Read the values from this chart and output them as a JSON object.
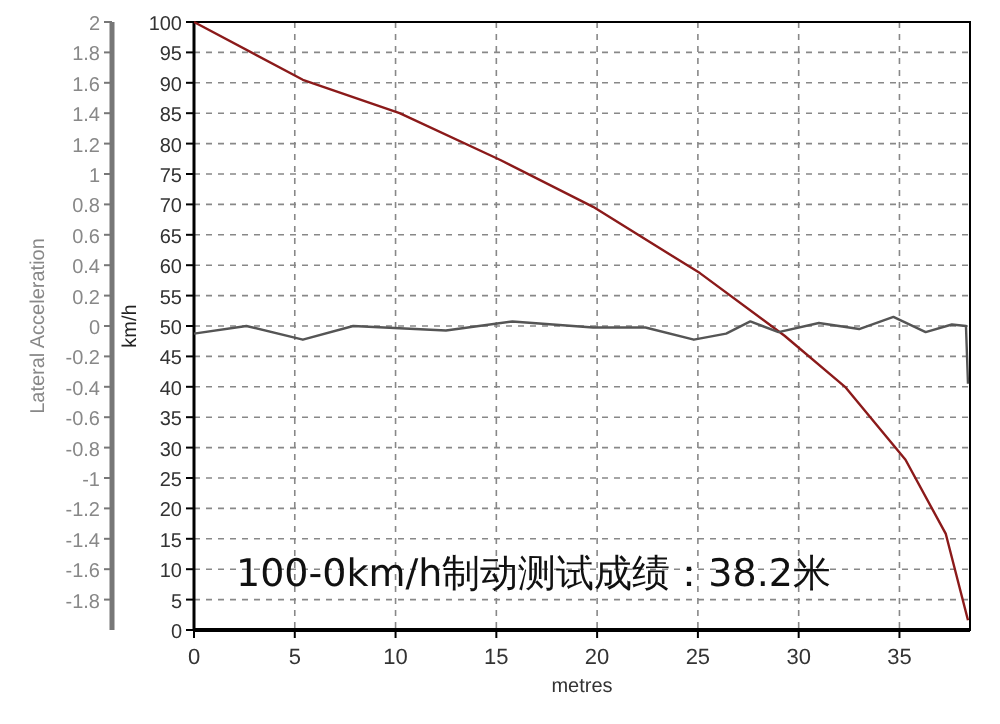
{
  "chart_data": {
    "type": "line",
    "xlabel": "metres",
    "ylabel": "km/h",
    "y2label": "Lateral Acceleration",
    "annotations": [
      "100-0km/h制动测试成绩：38.2米"
    ],
    "xlim": [
      0,
      38.5
    ],
    "xticks": [
      0,
      5,
      10,
      15,
      20,
      25,
      30,
      35
    ],
    "ylim": [
      0,
      100
    ],
    "yticks": [
      0,
      5,
      10,
      15,
      20,
      25,
      30,
      35,
      40,
      45,
      50,
      55,
      60,
      65,
      70,
      75,
      80,
      85,
      90,
      95,
      100
    ],
    "y2lim": [
      -2,
      2
    ],
    "y2ticks": [
      -1.8,
      -1.6,
      -1.4,
      -1.2,
      -1,
      -0.8,
      -0.6,
      -0.4,
      -0.2,
      0,
      0.2,
      0.4,
      0.6,
      0.8,
      1,
      1.2,
      1.4,
      1.6,
      1.8,
      2
    ],
    "grid": true,
    "series": [
      {
        "color": "#8b1a1a",
        "x": [
          0,
          5.4,
          10.2,
          15.2,
          19.8,
          25.1,
          29.3,
          32.3,
          35.3,
          37.3,
          38.4
        ],
        "values": [
          100,
          90.5,
          85,
          77.3,
          69.6,
          58.7,
          48.4,
          40,
          28,
          15.8,
          1.6
        ]
      },
      {
        "color": "#555555",
        "axis": "y2",
        "x": [
          0,
          2.6,
          5.4,
          7.9,
          12.5,
          15.8,
          19.8,
          22.4,
          24.8,
          26.4,
          27.6,
          29,
          31,
          33,
          34.7,
          36.3,
          37.6,
          38.3,
          38.4
        ],
        "values": [
          -0.05,
          0,
          -0.09,
          0,
          -0.03,
          0.03,
          -0.01,
          -0.01,
          -0.09,
          -0.05,
          0.03,
          -0.04,
          0.02,
          -0.02,
          0.06,
          -0.04,
          0.01,
          0,
          -0.38
        ]
      }
    ]
  }
}
